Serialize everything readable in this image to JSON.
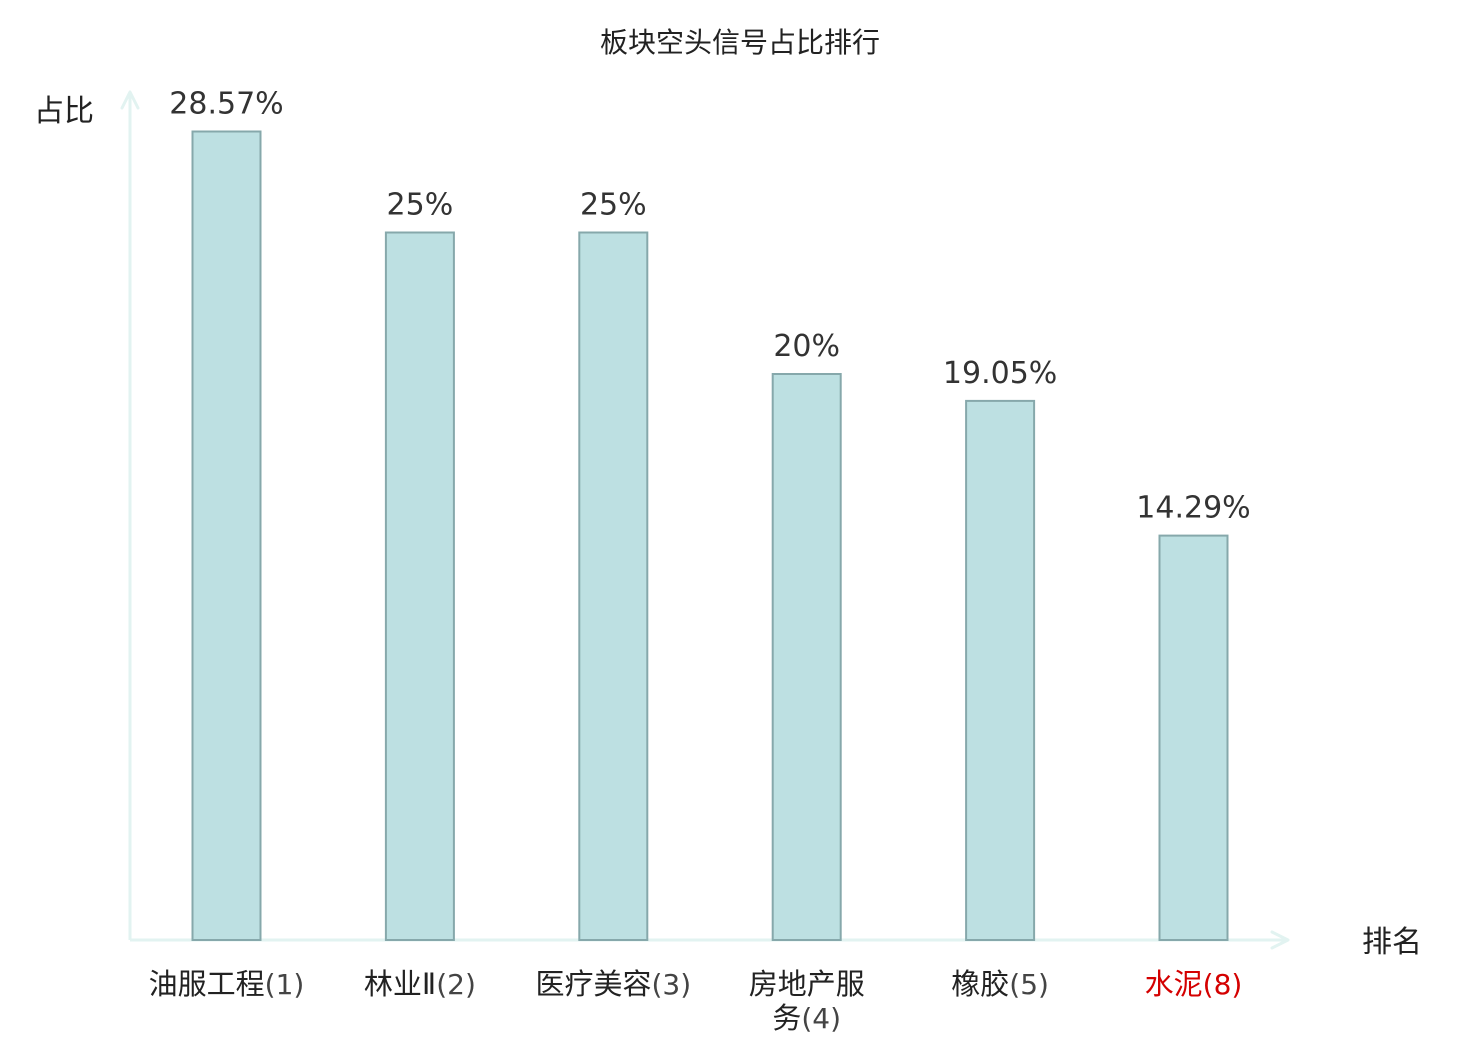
{
  "chart_data": {
    "type": "bar",
    "title": "板块空头信号占比排行",
    "xlabel": "排名",
    "ylabel": "占比",
    "ylim": [
      0,
      30
    ],
    "grid": false,
    "value_suffix": "%",
    "categories": [
      {
        "name": "油服工程",
        "rank": "(1)",
        "highlight": false
      },
      {
        "name": "林业Ⅱ",
        "rank": "(2)",
        "highlight": false
      },
      {
        "name": "医疗美容",
        "rank": "(3)",
        "highlight": false
      },
      {
        "name": "房地产服务",
        "rank": "(4)",
        "highlight": false,
        "wrap": [
          "房地产服",
          "务"
        ]
      },
      {
        "name": "橡胶",
        "rank": "(5)",
        "highlight": false
      },
      {
        "name": "水泥",
        "rank": "(8)",
        "highlight": true
      }
    ],
    "values": [
      28.57,
      25,
      25,
      20,
      19.05,
      14.29
    ],
    "value_labels": [
      "28.57%",
      "25%",
      "25%",
      "20%",
      "19.05%",
      "14.29%"
    ],
    "colors": {
      "bar_fill": "#bde0e2",
      "bar_stroke": "#86a8ab",
      "axis": "#e2f3f1",
      "text": "#222222",
      "rank_text": "#444444",
      "highlight": "#d40000"
    }
  }
}
